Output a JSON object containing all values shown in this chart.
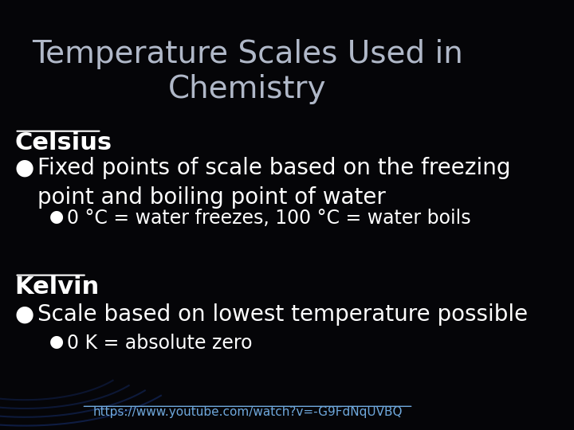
{
  "title_line1": "Temperature Scales Used in",
  "title_line2": "Chemistry",
  "title_color": "#b0b8c8",
  "title_fontsize": 28,
  "background_color": "#050508",
  "section1_header": "Celsius",
  "section1_bullet1": "Fixed points of scale based on the freezing\npoint and boiling point of water",
  "section1_sub_bullet1": "0 °C = water freezes, 100 °C = water boils",
  "section2_header": "Kelvin",
  "section2_bullet1": "Scale based on lowest temperature possible",
  "section2_sub_bullet1": "0 K = absolute zero",
  "url": "https://www.youtube.com/watch?v=-G9FdNqUVBQ",
  "header_color": "#ffffff",
  "bullet_color": "#ffffff",
  "sub_bullet_color": "#ffffff",
  "url_color": "#6fa8dc",
  "header_fontsize": 22,
  "bullet_fontsize": 20,
  "sub_bullet_fontsize": 17,
  "url_fontsize": 11,
  "bullet_marker": "●",
  "sub_bullet_marker": "●",
  "arc_color": "#1a3a8a",
  "arc_radii": [
    0.22,
    0.26,
    0.3,
    0.34
  ]
}
